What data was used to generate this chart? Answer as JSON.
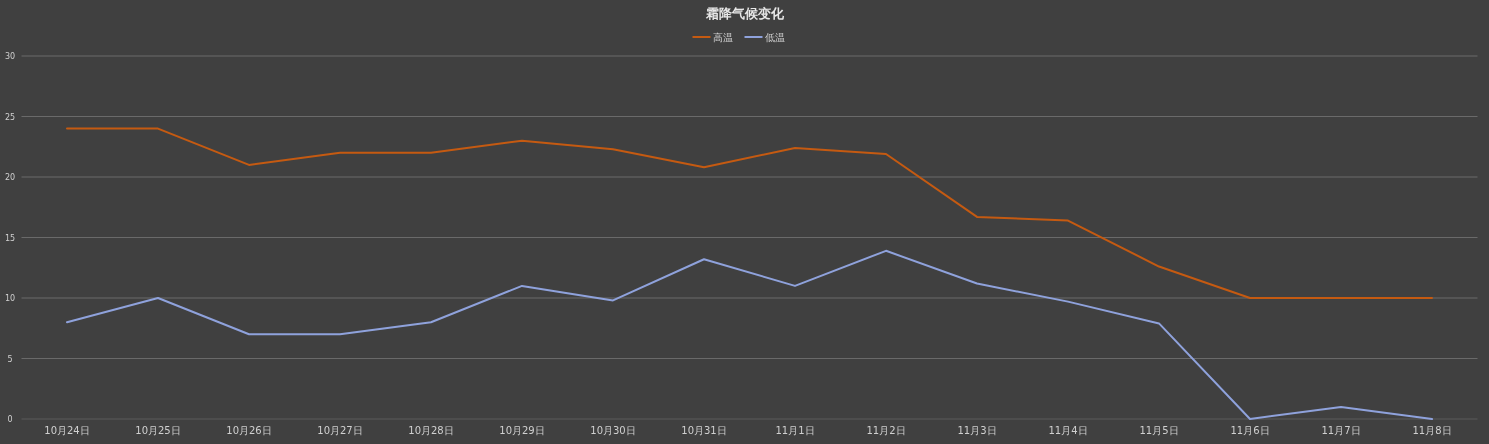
{
  "chart_data": {
    "type": "line",
    "title": "霜降气候变化",
    "categories": [
      "10月24日",
      "10月25日",
      "10月26日",
      "10月27日",
      "10月28日",
      "10月29日",
      "10月30日",
      "10月31日",
      "11月1日",
      "11月2日",
      "11月3日",
      "11月4日",
      "11月5日",
      "11月6日",
      "11月7日",
      "11月8日"
    ],
    "series": [
      {
        "name": "高温",
        "color": "#c55a11",
        "values": [
          24,
          24,
          21,
          22,
          22,
          23,
          22.3,
          20.8,
          22.4,
          21.9,
          16.7,
          16.4,
          12.6,
          10,
          10,
          10
        ]
      },
      {
        "name": "低温",
        "color": "#8fa2dc",
        "values": [
          8,
          10,
          7,
          7,
          8,
          11,
          9.8,
          13.2,
          11,
          13.9,
          11.2,
          9.7,
          7.9,
          0,
          1,
          0
        ]
      }
    ],
    "ylim": [
      0,
      30
    ],
    "yticks": [
      0,
      5,
      10,
      15,
      20,
      25,
      30
    ],
    "grid": "y",
    "legend": "top"
  }
}
